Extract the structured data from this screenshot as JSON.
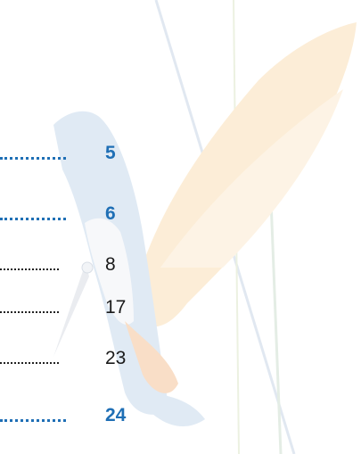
{
  "toc": {
    "entries": [
      {
        "page": 5,
        "emphasis": true
      },
      {
        "page": 6,
        "emphasis": true
      },
      {
        "page": 8,
        "emphasis": false
      },
      {
        "page": 17,
        "emphasis": false
      },
      {
        "page": 23,
        "emphasis": false
      },
      {
        "page": 24,
        "emphasis": true
      }
    ]
  }
}
